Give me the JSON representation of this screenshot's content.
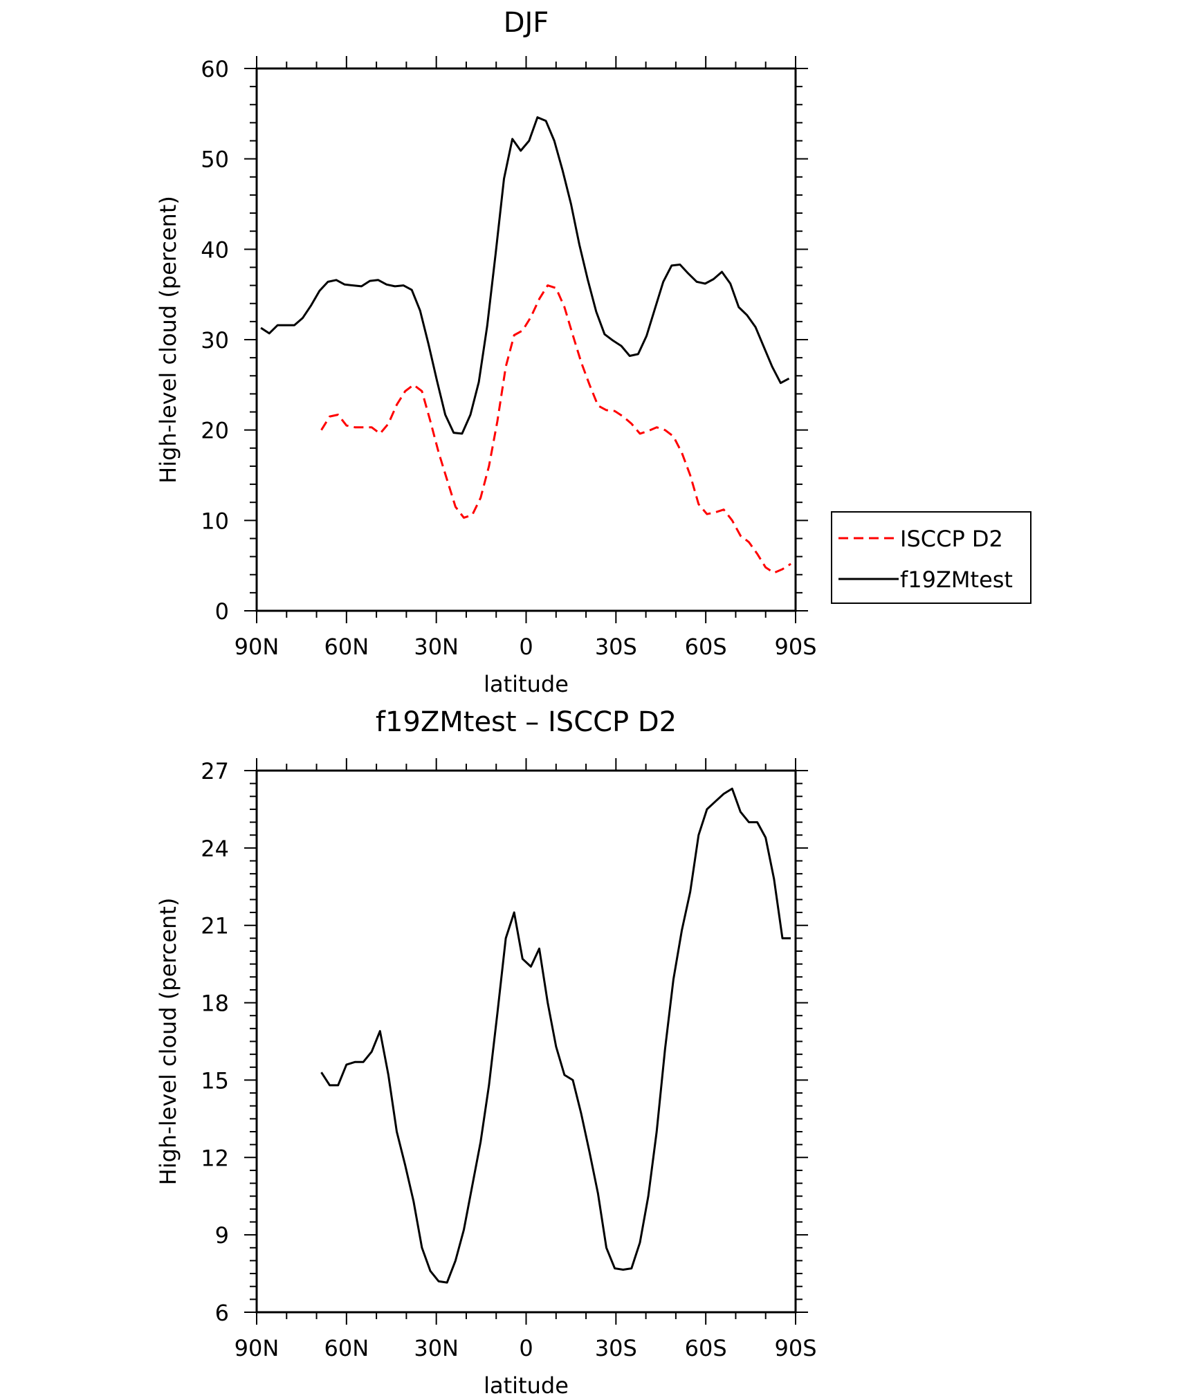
{
  "colors": {
    "isccp": "#ff0000",
    "model": "#000000"
  },
  "chart_data": [
    {
      "type": "line",
      "title": "DJF",
      "xlabel": "latitude",
      "ylabel": "High-level cloud (percent)",
      "xlim": [
        90,
        -90
      ],
      "ylim": [
        0,
        60
      ],
      "x_ticks": [
        {
          "value": 90,
          "label": "90N"
        },
        {
          "value": 60,
          "label": "60N"
        },
        {
          "value": 30,
          "label": "30N"
        },
        {
          "value": 0,
          "label": "0"
        },
        {
          "value": -30,
          "label": "30S"
        },
        {
          "value": -60,
          "label": "60S"
        },
        {
          "value": -90,
          "label": "90S"
        }
      ],
      "y_ticks": [
        0,
        10,
        20,
        30,
        40,
        50,
        60
      ],
      "legend_position": "right",
      "series": [
        {
          "name": "ISCCP D2",
          "color": "#ff0000",
          "dashed": true,
          "x": [
            68.4,
            65.6,
            62.8,
            60.0,
            57.2,
            54.4,
            51.6,
            48.8,
            46.0,
            43.2,
            40.4,
            37.6,
            34.8,
            32.0,
            29.2,
            26.4,
            23.6,
            20.8,
            18.0,
            15.2,
            12.4,
            9.6,
            6.8,
            4.0,
            1.2,
            -1.6,
            -4.4,
            -7.2,
            -10.0,
            -12.8,
            -15.6,
            -18.4,
            -21.2,
            -24.0,
            -26.8,
            -29.6,
            -32.4,
            -35.2,
            -38.0,
            -40.8,
            -43.6,
            -46.4,
            -49.2,
            -52.0,
            -54.8,
            -57.6,
            -60.4,
            -63.2,
            -66.0,
            -68.8,
            -71.6,
            -74.4,
            -77.2,
            -80.0,
            -82.8,
            -85.6,
            -88.4
          ],
          "y": [
            20.0,
            21.5,
            21.7,
            20.5,
            20.3,
            20.3,
            20.3,
            19.6,
            20.7,
            22.8,
            24.3,
            25.0,
            24.3,
            21.0,
            17.5,
            14.5,
            11.5,
            10.3,
            10.6,
            12.5,
            16.0,
            21.0,
            27.0,
            30.5,
            31.0,
            32.5,
            34.5,
            36.0,
            35.7,
            33.6,
            30.5,
            27.5,
            25.0,
            22.7,
            22.2,
            22.1,
            21.5,
            20.7,
            19.6,
            19.9,
            20.3,
            20.0,
            19.3,
            17.5,
            15.0,
            11.8,
            10.7,
            10.9,
            11.2,
            10.0,
            8.3,
            7.6,
            6.3,
            4.8,
            4.2,
            4.6,
            5.2
          ]
        },
        {
          "name": "f19ZMtest",
          "color": "#000000",
          "dashed": false,
          "x": [
            88.6,
            85.8,
            83.0,
            80.2,
            77.4,
            74.6,
            71.8,
            69.0,
            66.2,
            63.4,
            60.6,
            57.8,
            55.0,
            52.2,
            49.4,
            46.6,
            43.8,
            41.0,
            38.2,
            35.4,
            32.6,
            29.8,
            27.0,
            24.2,
            21.4,
            18.6,
            15.8,
            13.0,
            10.2,
            7.4,
            4.6,
            1.8,
            -1.0,
            -3.8,
            -6.6,
            -9.4,
            -12.2,
            -15.0,
            -17.8,
            -20.6,
            -23.4,
            -26.2,
            -29.0,
            -31.8,
            -34.6,
            -37.4,
            -40.2,
            -43.0,
            -45.8,
            -48.6,
            -51.4,
            -54.2,
            -57.0,
            -59.8,
            -62.6,
            -65.4,
            -68.2,
            -71.0,
            -73.8,
            -76.6,
            -79.4,
            -82.2,
            -85.0,
            -87.8
          ],
          "y": [
            31.3,
            30.7,
            31.6,
            31.6,
            31.6,
            32.4,
            33.8,
            35.4,
            36.4,
            36.6,
            36.1,
            36.0,
            35.9,
            36.5,
            36.6,
            36.1,
            35.9,
            36.0,
            35.5,
            33.2,
            29.5,
            25.5,
            21.7,
            19.7,
            19.6,
            21.7,
            25.3,
            31.5,
            39.5,
            47.8,
            52.2,
            50.9,
            52.0,
            54.6,
            54.2,
            52.0,
            48.7,
            45.0,
            40.5,
            36.6,
            33.1,
            30.6,
            29.9,
            29.3,
            28.2,
            28.4,
            30.4,
            33.4,
            36.4,
            38.2,
            38.3,
            37.3,
            36.4,
            36.2,
            36.7,
            37.5,
            36.2,
            33.6,
            32.7,
            31.4,
            29.2,
            27.0,
            25.2,
            25.7
          ]
        }
      ]
    },
    {
      "type": "line",
      "title": "f19ZMtest – ISCCP D2",
      "xlabel": "latitude",
      "ylabel": "High-level cloud (percent)",
      "xlim": [
        90,
        -90
      ],
      "ylim": [
        6,
        27
      ],
      "x_ticks": [
        {
          "value": 90,
          "label": "90N"
        },
        {
          "value": 60,
          "label": "60N"
        },
        {
          "value": 30,
          "label": "30N"
        },
        {
          "value": 0,
          "label": "0"
        },
        {
          "value": -30,
          "label": "30S"
        },
        {
          "value": -60,
          "label": "60S"
        },
        {
          "value": -90,
          "label": "90S"
        }
      ],
      "y_ticks": [
        6,
        9,
        12,
        15,
        18,
        21,
        24,
        27
      ],
      "series": [
        {
          "color": "#000000",
          "dashed": false,
          "x": [
            68.4,
            65.6,
            62.8,
            60.0,
            57.2,
            54.4,
            51.6,
            48.8,
            46.0,
            43.2,
            40.4,
            37.6,
            34.8,
            32.0,
            29.2,
            26.4,
            23.6,
            20.8,
            18.0,
            15.2,
            12.4,
            9.6,
            6.8,
            4.0,
            1.2,
            -1.6,
            -4.4,
            -7.2,
            -10.0,
            -12.8,
            -15.6,
            -18.4,
            -21.2,
            -24.0,
            -26.8,
            -29.6,
            -32.4,
            -35.2,
            -38.0,
            -40.8,
            -43.6,
            -46.4,
            -49.2,
            -52.0,
            -54.8,
            -57.6,
            -60.4,
            -63.2,
            -66.0,
            -68.8,
            -71.6,
            -74.4,
            -77.2,
            -80.0,
            -82.8,
            -85.6,
            -88.4
          ],
          "y": [
            15.3,
            14.8,
            14.8,
            15.6,
            15.7,
            15.7,
            16.1,
            16.9,
            15.2,
            13.0,
            11.7,
            10.3,
            8.5,
            7.6,
            7.2,
            7.15,
            8.0,
            9.2,
            10.9,
            12.6,
            14.8,
            17.6,
            20.5,
            21.5,
            19.7,
            19.4,
            20.1,
            18.0,
            16.3,
            15.2,
            15.0,
            13.7,
            12.2,
            10.6,
            8.5,
            7.7,
            7.65,
            7.7,
            8.7,
            10.5,
            13.0,
            16.2,
            18.9,
            20.8,
            22.3,
            24.5,
            25.5,
            25.8,
            26.1,
            26.3,
            25.4,
            25.0,
            25.0,
            24.4,
            22.8,
            20.5,
            20.5
          ]
        }
      ]
    }
  ]
}
